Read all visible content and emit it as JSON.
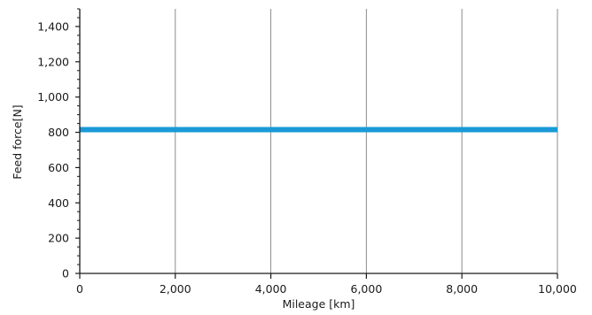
{
  "chart_data": {
    "type": "line",
    "xlabel": "Mileage [km]",
    "ylabel": "Feed force[N]",
    "xlim": [
      0,
      10000
    ],
    "ylim": [
      0,
      1500
    ],
    "x_ticks": [
      0,
      2000,
      4000,
      6000,
      8000,
      10000
    ],
    "x_tick_labels": [
      "0",
      "2,000",
      "4,000",
      "6,000",
      "8,000",
      "10,000"
    ],
    "y_ticks": [
      0,
      200,
      400,
      600,
      800,
      1000,
      1200,
      1400
    ],
    "y_tick_labels": [
      "0",
      "200",
      "400",
      "600",
      "800",
      "1,000",
      "1,200",
      "1,400"
    ],
    "grid": true,
    "series": [
      {
        "x": [
          0,
          10000
        ],
        "y": [
          815,
          815
        ],
        "color": "#1a9ad6"
      }
    ],
    "colors": {
      "series": "#1a9ad6",
      "grid": "#8c8c8c",
      "axis": "#1a1a1a"
    }
  }
}
